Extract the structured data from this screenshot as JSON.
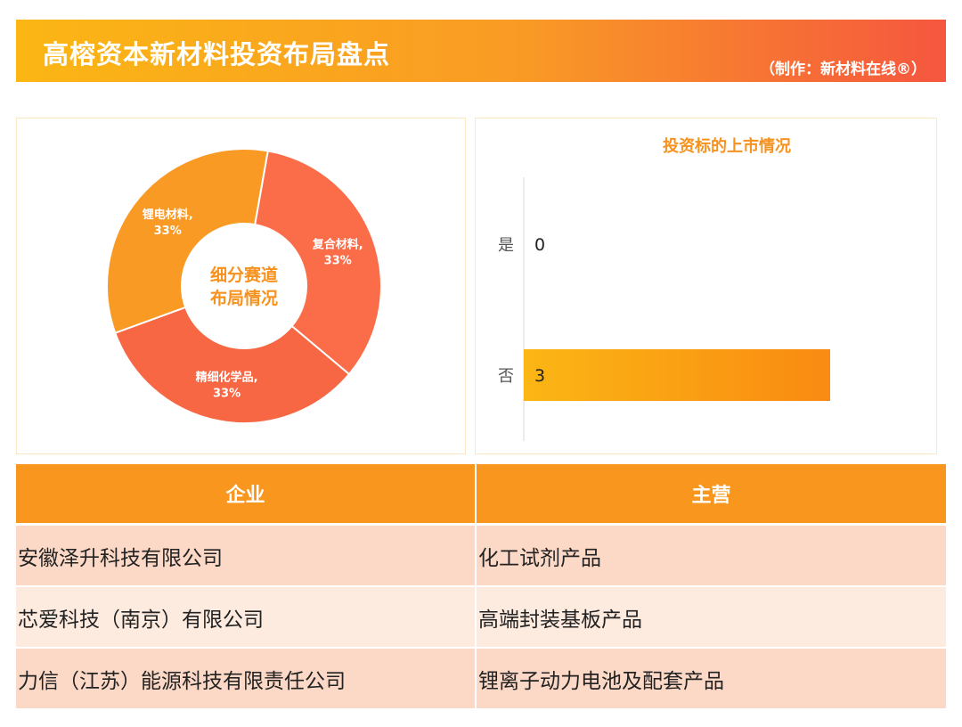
{
  "header": {
    "title": "高榕资本新材料投资布局盘点",
    "credit": "（制作：新材料在线®）"
  },
  "chart_data": [
    {
      "type": "pie",
      "variant": "donut",
      "center_label": [
        "细分赛道",
        "布局情况"
      ],
      "slices": [
        {
          "label": "复合材料",
          "value": 33,
          "display": "33%",
          "color": "#fb6d49"
        },
        {
          "label": "精细化学品",
          "value": 33,
          "display": "33%",
          "color": "#f76744"
        },
        {
          "label": "锂电材料",
          "value": 33,
          "display": "33%",
          "color": "#f99a25"
        }
      ]
    },
    {
      "type": "bar",
      "orientation": "horizontal",
      "title": "投资标的上市情况",
      "categories": [
        "是",
        "否"
      ],
      "values": [
        0,
        3
      ],
      "colors": [
        "#fbb614",
        "#f98a12"
      ]
    }
  ],
  "table": {
    "headers": [
      "企业",
      "主营"
    ],
    "rows": [
      [
        "安徽泽升科技有限公司",
        "化工试剂产品"
      ],
      [
        "芯爱科技（南京）有限公司",
        "高端封装基板产品"
      ],
      [
        "力信（江苏）能源科技有限责任公司",
        "锂离子动力电池及配套产品"
      ]
    ]
  }
}
